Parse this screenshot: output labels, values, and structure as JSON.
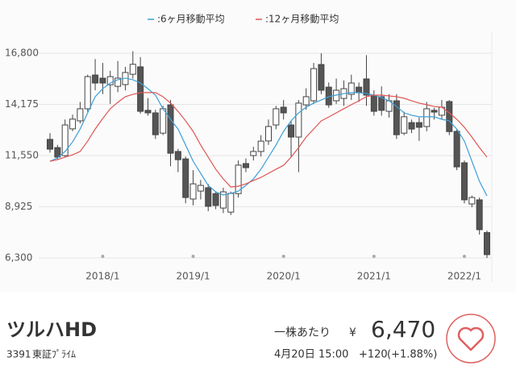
{
  "chart_data": {
    "type": "candlestick",
    "categories": [
      null,
      null,
      null,
      null,
      null,
      null,
      null,
      "2018/1",
      null,
      null,
      null,
      null,
      null,
      null,
      null,
      null,
      null,
      null,
      null,
      "2019/1",
      null,
      null,
      null,
      null,
      null,
      null,
      null,
      null,
      null,
      null,
      null,
      "2020/1",
      null,
      null,
      null,
      null,
      null,
      null,
      null,
      null,
      null,
      null,
      null,
      "2021/1",
      null,
      null,
      null,
      null,
      null,
      null,
      null,
      null,
      null,
      null,
      null,
      "2022/1",
      null,
      null,
      null
    ],
    "open": [
      12380,
      11960,
      11550,
      12920,
      13330,
      13950,
      15680,
      15520,
      15180,
      15100,
      15190,
      15720,
      16100,
      13870,
      13740,
      12700,
      14150,
      11760,
      11380,
      9320,
      9730,
      9900,
      9600,
      8860,
      8650,
      9600,
      11140,
      11550,
      11760,
      12300,
      13120,
      14030,
      13120,
      12500,
      14150,
      14360,
      16220,
      15060,
      14360,
      14480,
      14690,
      15060,
      15480,
      14650,
      14570,
      13820,
      14360,
      12700,
      13240,
      13240,
      13040,
      13870,
      13620,
      14320,
      12790,
      11180,
      9070,
      9280,
      7600
    ],
    "high": [
      12700,
      12100,
      13400,
      13650,
      14300,
      15700,
      16500,
      16300,
      15900,
      16400,
      16100,
      16900,
      16600,
      14500,
      13900,
      14100,
      14400,
      11900,
      11500,
      10800,
      10300,
      10100,
      9700,
      9900,
      9700,
      11300,
      11400,
      12000,
      12600,
      13400,
      14100,
      14400,
      13300,
      14400,
      15000,
      16300,
      16800,
      15300,
      15500,
      15400,
      15700,
      15300,
      16700,
      14900,
      15100,
      14700,
      14700,
      13800,
      13400,
      13500,
      14300,
      14000,
      14400,
      14400,
      12900,
      11300,
      9500,
      9400,
      7700
    ],
    "low": [
      11700,
      11350,
      11450,
      12800,
      13200,
      13800,
      14900,
      14700,
      14200,
      14800,
      14900,
      15500,
      13700,
      13600,
      12400,
      12600,
      11000,
      10700,
      9100,
      9000,
      9300,
      8700,
      8800,
      8600,
      8500,
      9400,
      10700,
      11300,
      11500,
      12100,
      12900,
      13400,
      11500,
      10700,
      13900,
      14200,
      14700,
      14000,
      14200,
      14100,
      14400,
      14300,
      14100,
      13600,
      13600,
      13500,
      12400,
      12600,
      12700,
      12300,
      12800,
      13400,
      13400,
      12600,
      10800,
      9100,
      8900,
      7500,
      6300
    ],
    "close": [
      11880,
      11470,
      13120,
      13420,
      13950,
      15600,
      15270,
      15270,
      15600,
      15520,
      15810,
      16230,
      13820,
      13740,
      12620,
      13950,
      11670,
      11340,
      9400,
      10100,
      10020,
      8950,
      8990,
      9690,
      9610,
      11060,
      10930,
      11760,
      12290,
      13040,
      13950,
      13740,
      12500,
      14240,
      14570,
      16010,
      14900,
      14150,
      14900,
      14980,
      15270,
      14770,
      14650,
      13820,
      13870,
      14360,
      12620,
      13540,
      12910,
      13000,
      13950,
      13780,
      14030,
      12780,
      10970,
      9280,
      9400,
      7750,
      6470
    ],
    "up_color": "#ffffff",
    "down_color": "#555555",
    "candle_edge": "#444444",
    "series": [
      {
        "name": ":6ヶ月移動平均",
        "color": "#3d9fd8",
        "values": [
          11260,
          11430,
          11760,
          12250,
          12910,
          13740,
          14570,
          14980,
          15270,
          15440,
          15520,
          15440,
          15270,
          14980,
          14650,
          13950,
          13410,
          12910,
          12090,
          11260,
          10640,
          10020,
          9690,
          9530,
          9610,
          9730,
          10020,
          10350,
          10850,
          11470,
          12090,
          12790,
          13330,
          13740,
          14030,
          14240,
          14400,
          14570,
          14650,
          14730,
          14780,
          14780,
          14730,
          14650,
          14530,
          14360,
          14070,
          13740,
          13620,
          13540,
          13540,
          13540,
          13410,
          13330,
          12910,
          12290,
          11260,
          10230,
          9480
        ]
      },
      {
        "name": ":12ヶ月移動平均",
        "color": "#e05555",
        "values": [
          11260,
          11340,
          11470,
          11590,
          11760,
          12290,
          12910,
          13450,
          13950,
          14280,
          14570,
          14690,
          14780,
          14780,
          14780,
          14570,
          14240,
          13820,
          13330,
          12790,
          12090,
          11470,
          10850,
          10350,
          9940,
          9980,
          10100,
          10270,
          10430,
          10640,
          10850,
          11050,
          11470,
          11960,
          12500,
          12910,
          13330,
          13530,
          13740,
          13950,
          14160,
          14360,
          14570,
          14650,
          14650,
          14610,
          14570,
          14490,
          14360,
          14240,
          14160,
          14070,
          14030,
          13740,
          13410,
          13000,
          12500,
          11960,
          11470
        ]
      }
    ],
    "ylim": [
      6300,
      16800
    ],
    "yticks": [
      {
        "value": 6300,
        "label": "6,300"
      },
      {
        "value": 8925,
        "label": "8,925"
      },
      {
        "value": 11550,
        "label": "11,550"
      },
      {
        "value": 14175,
        "label": "14,175"
      },
      {
        "value": 16800,
        "label": "16,800"
      }
    ],
    "grid": true
  },
  "stock": {
    "name": "ツルハHD",
    "code": "3391",
    "market": "東証ﾌﾟﾗｲﾑ",
    "per_share": "一株あたり",
    "currency": "¥",
    "price": "6,470",
    "time": "4月20日 15:00",
    "change": "+120",
    "change_pct": "(+1.88%)"
  }
}
